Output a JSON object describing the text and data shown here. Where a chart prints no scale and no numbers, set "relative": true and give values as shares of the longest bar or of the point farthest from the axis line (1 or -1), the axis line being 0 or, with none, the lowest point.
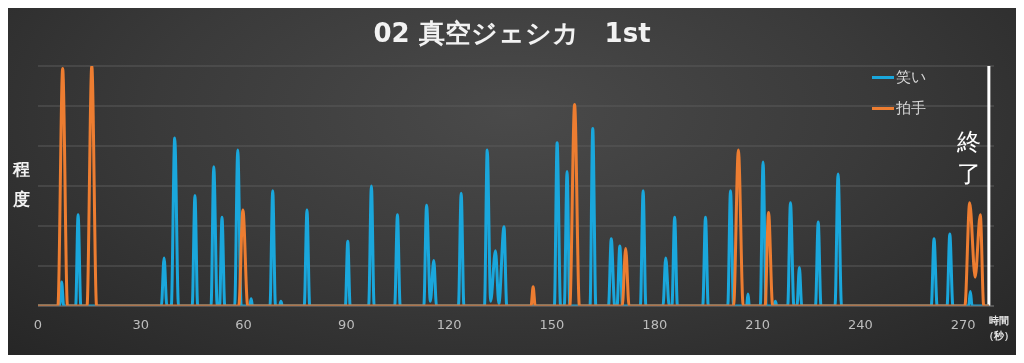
{
  "chart_data": {
    "type": "line",
    "title": "02 真空ジェシカ　1st",
    "xlabel": "時間（秒）",
    "ylabel": "程度",
    "relative": true,
    "xlim": [
      0,
      279
    ],
    "xticks": [
      0,
      30,
      60,
      90,
      120,
      150,
      180,
      210,
      240,
      270
    ],
    "grid": "y",
    "legend": "top right",
    "ref_lines": [
      {
        "axis": "x",
        "value": 277.5,
        "label": "終了",
        "color": "#ffffff"
      }
    ],
    "series": [
      {
        "name": "笑い",
        "color": "#1aa7dc",
        "x": [
          0,
          6.3,
          6.9,
          7.5,
          11.0,
          11.7,
          12.5,
          36.0,
          36.8,
          37.6,
          38.9,
          39.9,
          41.0,
          45.0,
          45.8,
          46.6,
          50.5,
          51.3,
          52.3,
          53.0,
          53.7,
          54.5,
          57.4,
          58.3,
          59.3,
          61.8,
          62.2,
          62.6,
          67.7,
          68.5,
          69.3,
          70.5,
          70.9,
          71.3,
          77.7,
          78.5,
          79.3,
          89.7,
          90.4,
          91.1,
          96.5,
          97.3,
          98.1,
          104.1,
          104.9,
          105.7,
          112.6,
          113.4,
          114.5,
          115.5,
          116.3,
          122.7,
          123.5,
          124.3,
          130.3,
          131.1,
          132.1,
          133.5,
          134.5,
          136.0,
          136.8,
          150.7,
          151.5,
          152.5,
          153.6,
          154.4,
          155.2,
          161.1,
          161.9,
          162.8,
          166.5,
          167.3,
          168.3,
          169.0,
          169.8,
          170.6,
          175.8,
          176.6,
          177.4,
          182.4,
          183.2,
          184.2,
          185.0,
          185.8,
          186.6,
          194.0,
          194.8,
          195.6,
          201.3,
          202.1,
          203.0,
          206.8,
          207.2,
          207.6,
          210.8,
          211.6,
          212.5,
          214.8,
          215.2,
          215.6,
          218.8,
          219.6,
          220.6,
          221.5,
          222.2,
          222.9,
          226.9,
          227.7,
          228.5,
          232.6,
          233.5,
          234.5,
          260.7,
          261.5,
          262.4,
          265.3,
          266.1,
          267.0,
          271.6,
          272.1,
          272.6,
          277.5
        ],
        "values": [
          0,
          0,
          0.1,
          0,
          0,
          0.38,
          0,
          0,
          0.2,
          0,
          0,
          0.7,
          0,
          0,
          0.46,
          0,
          0,
          0.58,
          0,
          0,
          0.37,
          0,
          0,
          0.65,
          0,
          0,
          0.03,
          0,
          0,
          0.48,
          0,
          0,
          0.02,
          0,
          0,
          0.4,
          0,
          0,
          0.27,
          0,
          0,
          0.5,
          0,
          0,
          0.38,
          0,
          0,
          0.42,
          0.02,
          0.19,
          0,
          0,
          0.47,
          0,
          0,
          0.65,
          0.02,
          0.23,
          0.01,
          0.33,
          0,
          0,
          0.68,
          0,
          0,
          0.56,
          0,
          0,
          0.74,
          0,
          0,
          0.28,
          0,
          0,
          0.25,
          0,
          0,
          0.48,
          0,
          0,
          0.2,
          0,
          0,
          0.37,
          0,
          0,
          0.37,
          0,
          0,
          0.48,
          0,
          0,
          0.05,
          0,
          0,
          0.6,
          0,
          0,
          0.02,
          0,
          0,
          0.43,
          0,
          0,
          0.16,
          0,
          0,
          0.35,
          0,
          0,
          0.55,
          0,
          0,
          0.28,
          0,
          0,
          0.3,
          0,
          0,
          0.06,
          0,
          0
        ]
      },
      {
        "name": "拍手",
        "color": "#ed7d31",
        "x": [
          0,
          5.8,
          7.2,
          8.6,
          14.3,
          15.7,
          17.1,
          58.6,
          59.8,
          61.2,
          143.9,
          144.5,
          145.1,
          155.2,
          156.6,
          158.0,
          170.5,
          171.5,
          172.5,
          203.0,
          204.4,
          205.8,
          212.2,
          213.2,
          214.4,
          270.5,
          271.9,
          273.5,
          275.0,
          276.0,
          277.5
        ],
        "values": [
          0,
          0,
          0.99,
          0,
          0,
          1,
          0,
          0,
          0.4,
          0,
          0,
          0.08,
          0,
          0,
          0.84,
          0,
          0,
          0.24,
          0,
          0,
          0.65,
          0,
          0,
          0.39,
          0,
          0,
          0.43,
          0.12,
          0.38,
          0,
          0
        ]
      }
    ]
  }
}
